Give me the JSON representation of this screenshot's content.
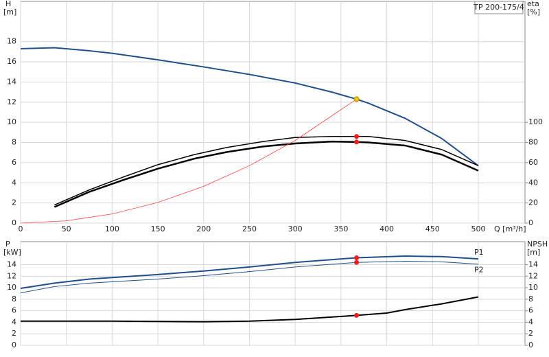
{
  "chart_data": [
    {
      "type": "line",
      "title": "TP 200-175/4",
      "y_label": "H",
      "y_unit": "[m]",
      "y2_label": "eta",
      "y2_unit": "[%]",
      "x_label": "Q [m³/h]",
      "xlim": [
        0,
        551
      ],
      "xticks": [
        0,
        50,
        100,
        150,
        200,
        250,
        300,
        350,
        400,
        450,
        500
      ],
      "ylim": [
        0,
        22
      ],
      "yticks": [
        0,
        2,
        4,
        6,
        8,
        10,
        12,
        14,
        16,
        18
      ],
      "y2lim": [
        0,
        220
      ],
      "y2ticks": [
        0,
        20,
        40,
        60,
        80,
        100
      ],
      "grid": true,
      "series": [
        {
          "color": "#1f4e8c",
          "line_width": 2,
          "x": [
            0,
            37,
            75,
            100,
            150,
            200,
            250,
            300,
            340,
            367,
            380,
            420,
            460,
            500
          ],
          "values": [
            17.3,
            17.4,
            17.1,
            16.85,
            16.2,
            15.5,
            14.75,
            13.9,
            13.0,
            12.3,
            11.9,
            10.4,
            8.4,
            5.7
          ]
        },
        {
          "color": "#000000",
          "line_width": 1.5,
          "axis": "y2",
          "x": [
            37,
            75,
            113,
            150,
            190,
            225,
            265,
            300,
            340,
            367,
            380,
            420,
            460,
            500
          ],
          "values": [
            18,
            33,
            46,
            58,
            68,
            75,
            81,
            85,
            86,
            86,
            86,
            82,
            73,
            57
          ]
        },
        {
          "color": "#000000",
          "line_width": 2.5,
          "axis": "y2",
          "x": [
            37,
            75,
            113,
            150,
            190,
            225,
            265,
            300,
            340,
            367,
            380,
            420,
            460,
            500
          ],
          "values": [
            16,
            31,
            43,
            54,
            64,
            70.5,
            76,
            79,
            81,
            80.5,
            80,
            77,
            68,
            52
          ]
        },
        {
          "color": "#ff4040",
          "line_width": 0.8,
          "x": [
            0,
            50,
            100,
            150,
            200,
            250,
            300,
            367
          ],
          "values": [
            0,
            0.23,
            0.91,
            2.05,
            3.65,
            5.7,
            8.2,
            12.3
          ]
        }
      ],
      "markers": [
        {
          "x": 367,
          "y": 12.3,
          "color": "#f5c400"
        },
        {
          "x": 367,
          "y": 86,
          "color": "#ee1c1c",
          "axis": "y2"
        },
        {
          "x": 367,
          "y": 80.5,
          "color": "#ee1c1c",
          "axis": "y2"
        }
      ]
    },
    {
      "type": "line",
      "y_label": "P",
      "y_unit": "[kW]",
      "y2_label": "NPSH",
      "y2_unit": "[m]",
      "xlim": [
        0,
        551
      ],
      "ylim": [
        0,
        18
      ],
      "yticks": [
        0,
        2,
        4,
        6,
        8,
        10,
        12,
        14
      ],
      "y2lim": [
        0,
        18
      ],
      "y2ticks": [
        0,
        2,
        4,
        6,
        8,
        10,
        12,
        14
      ],
      "grid": true,
      "series": [
        {
          "name": "P1",
          "color": "#1f4e8c",
          "line_width": 2,
          "x": [
            0,
            37,
            75,
            150,
            200,
            250,
            300,
            367,
            420,
            460,
            500
          ],
          "values": [
            9.9,
            10.8,
            11.5,
            12.3,
            12.9,
            13.6,
            14.4,
            15.2,
            15.5,
            15.4,
            15.0
          ]
        },
        {
          "name": "P2",
          "color": "#1f4e8c",
          "line_width": 1,
          "x": [
            0,
            37,
            75,
            150,
            200,
            250,
            300,
            367,
            420,
            460,
            500
          ],
          "values": [
            9.1,
            10.2,
            10.8,
            11.5,
            12.1,
            12.8,
            13.6,
            14.4,
            14.6,
            14.5,
            14.1
          ]
        },
        {
          "color": "#000000",
          "line_width": 2,
          "axis": "y2",
          "x": [
            0,
            37,
            100,
            200,
            250,
            300,
            367,
            400,
            420,
            460,
            500
          ],
          "values": [
            4.2,
            4.2,
            4.2,
            4.1,
            4.2,
            4.5,
            5.2,
            5.6,
            6.2,
            7.2,
            8.4
          ]
        }
      ],
      "markers": [
        {
          "x": 367,
          "y": 15.2,
          "color": "#ee1c1c"
        },
        {
          "x": 367,
          "y": 14.4,
          "color": "#ee1c1c"
        },
        {
          "x": 367,
          "y": 5.2,
          "color": "#ee1c1c",
          "axis": "y2"
        }
      ]
    }
  ]
}
